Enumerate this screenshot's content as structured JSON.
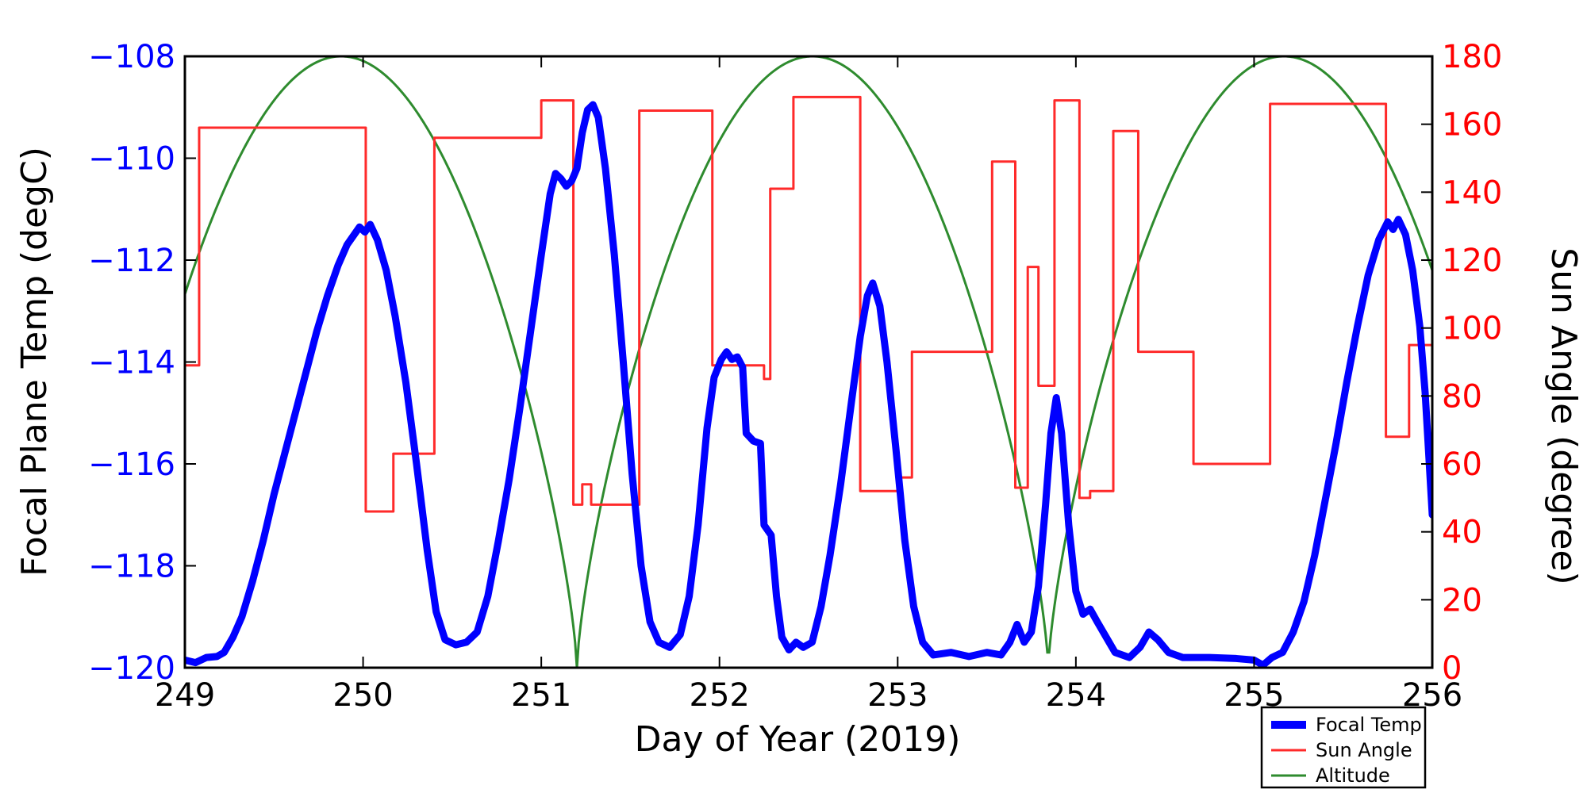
{
  "chart_data": {
    "type": "line",
    "title": "",
    "xlabel": "Day of Year (2019)",
    "ylabel_left": "Focal Plane Temp (degC)",
    "ylabel_right": "Sun Angle (degree)",
    "x_range": [
      249,
      256
    ],
    "x_ticks": [
      249,
      250,
      251,
      252,
      253,
      254,
      255,
      256
    ],
    "y_left_range": [
      -120,
      -108
    ],
    "y_left_ticks": [
      -108,
      -110,
      -112,
      -114,
      -116,
      -118,
      -120
    ],
    "y_right_range": [
      0,
      180
    ],
    "y_right_ticks": [
      0,
      20,
      40,
      60,
      80,
      100,
      120,
      140,
      160,
      180
    ],
    "grid": false,
    "colors": {
      "focal_temp": "#0000ff",
      "sun_angle": "#ff2a2a",
      "altitude": "#2e8b2e",
      "left_tick_labels": "#0000ff",
      "right_tick_labels": "#ff0000",
      "axis": "#000000",
      "background": "#ffffff"
    },
    "legend": {
      "position": "bottom-right",
      "entries": [
        {
          "label": "Focal Temp",
          "color": "#0000ff",
          "line_width": 10
        },
        {
          "label": "Sun Angle",
          "color": "#ff2a2a",
          "line_width": 3
        },
        {
          "label": "Altitude",
          "color": "#2e8b2e",
          "line_width": 3
        }
      ]
    },
    "series": [
      {
        "name": "Focal Temp",
        "axis": "left",
        "style": "line",
        "line_width": 9,
        "points": [
          [
            249.0,
            -119.85
          ],
          [
            249.06,
            -119.9
          ],
          [
            249.12,
            -119.8
          ],
          [
            249.18,
            -119.78
          ],
          [
            249.22,
            -119.7
          ],
          [
            249.27,
            -119.4
          ],
          [
            249.32,
            -119.0
          ],
          [
            249.38,
            -118.3
          ],
          [
            249.44,
            -117.5
          ],
          [
            249.5,
            -116.6
          ],
          [
            249.56,
            -115.8
          ],
          [
            249.62,
            -115.0
          ],
          [
            249.68,
            -114.2
          ],
          [
            249.74,
            -113.4
          ],
          [
            249.8,
            -112.7
          ],
          [
            249.86,
            -112.1
          ],
          [
            249.91,
            -111.7
          ],
          [
            249.95,
            -111.5
          ],
          [
            249.98,
            -111.35
          ],
          [
            250.01,
            -111.45
          ],
          [
            250.04,
            -111.3
          ],
          [
            250.08,
            -111.6
          ],
          [
            250.13,
            -112.2
          ],
          [
            250.18,
            -113.1
          ],
          [
            250.24,
            -114.4
          ],
          [
            250.3,
            -116.0
          ],
          [
            250.36,
            -117.7
          ],
          [
            250.41,
            -118.9
          ],
          [
            250.46,
            -119.45
          ],
          [
            250.52,
            -119.55
          ],
          [
            250.58,
            -119.5
          ],
          [
            250.64,
            -119.3
          ],
          [
            250.7,
            -118.6
          ],
          [
            250.76,
            -117.5
          ],
          [
            250.82,
            -116.3
          ],
          [
            250.88,
            -114.9
          ],
          [
            250.94,
            -113.4
          ],
          [
            251.0,
            -111.9
          ],
          [
            251.05,
            -110.7
          ],
          [
            251.08,
            -110.3
          ],
          [
            251.11,
            -110.4
          ],
          [
            251.14,
            -110.55
          ],
          [
            251.17,
            -110.45
          ],
          [
            251.2,
            -110.2
          ],
          [
            251.23,
            -109.5
          ],
          [
            251.26,
            -109.05
          ],
          [
            251.29,
            -108.95
          ],
          [
            251.32,
            -109.2
          ],
          [
            251.36,
            -110.2
          ],
          [
            251.41,
            -111.9
          ],
          [
            251.46,
            -114.0
          ],
          [
            251.51,
            -116.2
          ],
          [
            251.56,
            -118.0
          ],
          [
            251.61,
            -119.1
          ],
          [
            251.66,
            -119.5
          ],
          [
            251.72,
            -119.6
          ],
          [
            251.78,
            -119.35
          ],
          [
            251.83,
            -118.6
          ],
          [
            251.88,
            -117.2
          ],
          [
            251.93,
            -115.3
          ],
          [
            251.97,
            -114.3
          ],
          [
            252.01,
            -113.95
          ],
          [
            252.04,
            -113.8
          ],
          [
            252.07,
            -113.95
          ],
          [
            252.1,
            -113.9
          ],
          [
            252.13,
            -114.1
          ],
          [
            252.15,
            -115.4
          ],
          [
            252.19,
            -115.55
          ],
          [
            252.23,
            -115.6
          ],
          [
            252.25,
            -117.2
          ],
          [
            252.29,
            -117.4
          ],
          [
            252.32,
            -118.6
          ],
          [
            252.35,
            -119.4
          ],
          [
            252.39,
            -119.65
          ],
          [
            252.43,
            -119.5
          ],
          [
            252.47,
            -119.6
          ],
          [
            252.52,
            -119.5
          ],
          [
            252.57,
            -118.8
          ],
          [
            252.62,
            -117.8
          ],
          [
            252.68,
            -116.4
          ],
          [
            252.74,
            -114.8
          ],
          [
            252.79,
            -113.5
          ],
          [
            252.83,
            -112.7
          ],
          [
            252.86,
            -112.45
          ],
          [
            252.9,
            -112.9
          ],
          [
            252.94,
            -114.0
          ],
          [
            252.99,
            -115.7
          ],
          [
            253.04,
            -117.5
          ],
          [
            253.09,
            -118.8
          ],
          [
            253.14,
            -119.5
          ],
          [
            253.2,
            -119.75
          ],
          [
            253.3,
            -119.7
          ],
          [
            253.4,
            -119.78
          ],
          [
            253.5,
            -119.7
          ],
          [
            253.58,
            -119.75
          ],
          [
            253.63,
            -119.5
          ],
          [
            253.67,
            -119.15
          ],
          [
            253.71,
            -119.5
          ],
          [
            253.75,
            -119.3
          ],
          [
            253.79,
            -118.4
          ],
          [
            253.83,
            -116.8
          ],
          [
            253.86,
            -115.4
          ],
          [
            253.89,
            -114.7
          ],
          [
            253.92,
            -115.4
          ],
          [
            253.96,
            -117.2
          ],
          [
            254.0,
            -118.5
          ],
          [
            254.04,
            -118.95
          ],
          [
            254.08,
            -118.85
          ],
          [
            254.12,
            -119.1
          ],
          [
            254.17,
            -119.4
          ],
          [
            254.22,
            -119.7
          ],
          [
            254.3,
            -119.8
          ],
          [
            254.36,
            -119.6
          ],
          [
            254.41,
            -119.3
          ],
          [
            254.46,
            -119.45
          ],
          [
            254.52,
            -119.7
          ],
          [
            254.6,
            -119.8
          ],
          [
            254.75,
            -119.8
          ],
          [
            254.9,
            -119.82
          ],
          [
            255.0,
            -119.85
          ],
          [
            255.05,
            -119.95
          ],
          [
            255.1,
            -119.8
          ],
          [
            255.16,
            -119.7
          ],
          [
            255.22,
            -119.3
          ],
          [
            255.28,
            -118.7
          ],
          [
            255.34,
            -117.8
          ],
          [
            255.4,
            -116.7
          ],
          [
            255.46,
            -115.6
          ],
          [
            255.52,
            -114.4
          ],
          [
            255.58,
            -113.3
          ],
          [
            255.64,
            -112.3
          ],
          [
            255.7,
            -111.6
          ],
          [
            255.75,
            -111.25
          ],
          [
            255.78,
            -111.4
          ],
          [
            255.81,
            -111.2
          ],
          [
            255.85,
            -111.5
          ],
          [
            255.89,
            -112.2
          ],
          [
            255.93,
            -113.3
          ],
          [
            255.96,
            -114.6
          ],
          [
            256.0,
            -117.0
          ]
        ]
      },
      {
        "name": "Sun Angle",
        "axis": "right",
        "style": "step",
        "line_width": 3,
        "steps": [
          [
            249.0,
            89
          ],
          [
            249.08,
            159
          ],
          [
            250.015,
            46
          ],
          [
            250.17,
            63
          ],
          [
            250.4,
            156
          ],
          [
            251.0,
            167
          ],
          [
            251.18,
            48
          ],
          [
            251.23,
            54
          ],
          [
            251.28,
            48
          ],
          [
            251.55,
            164
          ],
          [
            251.96,
            89
          ],
          [
            252.25,
            85
          ],
          [
            252.285,
            141
          ],
          [
            252.415,
            168
          ],
          [
            252.79,
            52
          ],
          [
            253.0,
            56
          ],
          [
            253.08,
            93
          ],
          [
            253.53,
            149
          ],
          [
            253.66,
            53
          ],
          [
            253.73,
            118
          ],
          [
            253.79,
            83
          ],
          [
            253.88,
            167
          ],
          [
            254.02,
            50
          ],
          [
            254.08,
            52
          ],
          [
            254.21,
            158
          ],
          [
            254.35,
            93
          ],
          [
            254.66,
            60
          ],
          [
            255.09,
            166
          ],
          [
            255.74,
            68
          ],
          [
            255.87,
            95
          ]
        ],
        "end_day": 256.0
      },
      {
        "name": "Altitude",
        "axis": "right",
        "style": "line",
        "line_width": 3,
        "model": {
          "type": "abs_cos_pow",
          "center_day": 249.8775,
          "period_days": 2.645,
          "exponent": 0.72,
          "amplitude": 180,
          "sample_step": 0.01
        },
        "peaks_at_days": [
          249.88,
          252.52,
          255.17
        ],
        "zeros_at_days": [
          251.2,
          253.85
        ],
        "value_at_day249": 110,
        "value_at_day256": 118
      }
    ]
  }
}
